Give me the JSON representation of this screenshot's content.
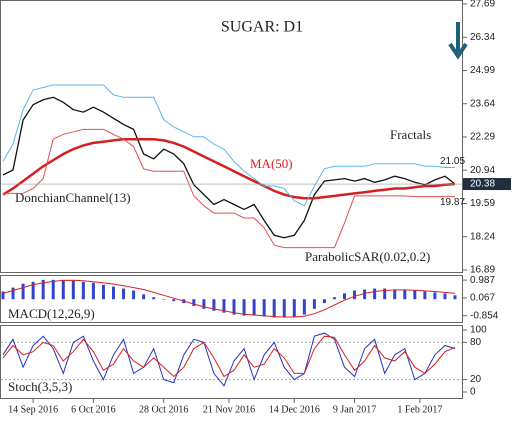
{
  "chart_data": [
    {
      "type": "line",
      "title": "SUGAR: D1",
      "annotations": [
        "Fractals",
        "MA(50)",
        "DonchianChannel(13)",
        "ParabolicSAR(0.02,0.2)"
      ],
      "xlim": [
        0,
        45
      ],
      "xticks": [
        {
          "value": 3,
          "label": "14 Sep 2016"
        },
        {
          "value": 9,
          "label": "6 Oct 2016"
        },
        {
          "value": 16,
          "label": "28 Oct 2016"
        },
        {
          "value": 22.5,
          "label": "21 Nov 2016"
        },
        {
          "value": 29,
          "label": "14 Dec 2016"
        },
        {
          "value": 35,
          "label": "9 Jan 2017"
        },
        {
          "value": 41.5,
          "label": "1 Feb 2017"
        }
      ],
      "ylim": [
        16.89,
        27.69
      ],
      "yticks": [
        16.89,
        18.24,
        19.59,
        20.94,
        22.29,
        23.64,
        24.99,
        26.34,
        27.69
      ],
      "last_price": 20.38,
      "channel_labels": [
        21.05,
        19.87
      ],
      "series": [
        {
          "color": "#111111",
          "values": [
            20.75,
            20.95,
            22.98,
            23.6,
            23.8,
            23.9,
            23.7,
            23.4,
            23.3,
            23.5,
            23.3,
            23.05,
            22.8,
            22.6,
            21.6,
            21.4,
            21.8,
            21.6,
            21.2,
            20.35,
            19.95,
            19.55,
            19.75,
            19.55,
            19.35,
            19.55,
            18.9,
            18.3,
            18.2,
            18.3,
            18.9,
            19.95,
            20.5,
            20.55,
            20.6,
            20.5,
            20.6,
            20.45,
            20.55,
            20.7,
            20.6,
            20.45,
            20.35,
            20.55,
            20.7,
            20.38
          ]
        },
        {
          "color": "#d42020",
          "values": [
            19.95,
            20.2,
            20.5,
            20.8,
            21.1,
            21.35,
            21.6,
            21.8,
            21.95,
            22.05,
            22.1,
            22.15,
            22.2,
            22.2,
            22.2,
            22.2,
            22.15,
            22.05,
            21.9,
            21.7,
            21.5,
            21.3,
            21.1,
            20.9,
            20.7,
            20.5,
            20.3,
            20.1,
            19.95,
            19.85,
            19.8,
            19.8,
            19.85,
            19.9,
            19.95,
            20.0,
            20.05,
            20.1,
            20.15,
            20.2,
            20.2,
            20.25,
            20.3,
            20.3,
            20.35,
            20.38
          ]
        },
        {
          "color": "#5bb8e6",
          "values": [
            21.3,
            22.0,
            23.4,
            24.2,
            24.3,
            24.4,
            24.4,
            24.4,
            24.4,
            24.4,
            24.4,
            24.0,
            23.9,
            23.9,
            23.9,
            23.9,
            23.0,
            22.7,
            22.5,
            22.3,
            22.3,
            22.0,
            21.8,
            21.3,
            20.9,
            20.6,
            20.3,
            20.3,
            20.2,
            19.7,
            19.5,
            20.3,
            21.0,
            21.1,
            21.1,
            21.1,
            21.1,
            21.2,
            21.2,
            21.2,
            21.2,
            21.2,
            21.1,
            21.1,
            21.05,
            21.05
          ]
        },
        {
          "color": "#e05050",
          "values": [
            20.0,
            20.0,
            20.0,
            20.2,
            20.6,
            22.2,
            22.4,
            22.5,
            22.6,
            22.6,
            22.6,
            22.4,
            22.2,
            21.9,
            21.0,
            20.9,
            20.9,
            20.9,
            20.9,
            19.9,
            19.5,
            19.2,
            19.2,
            19.2,
            19.0,
            19.0,
            18.6,
            17.9,
            17.8,
            17.8,
            17.8,
            17.8,
            17.8,
            17.8,
            18.8,
            19.9,
            19.9,
            19.9,
            19.9,
            19.9,
            19.9,
            19.87,
            19.87,
            19.87,
            19.87,
            19.87
          ]
        }
      ]
    },
    {
      "type": "bar",
      "annotations": [
        "MACD(12,26,9)"
      ],
      "xlim": [
        0,
        45
      ],
      "ylim": [
        -1.18,
        1.2
      ],
      "yticks": [
        -0.854,
        0.067,
        0.987
      ],
      "color": "#3344cc",
      "values": [
        0.4,
        0.6,
        0.8,
        0.9,
        1.0,
        1.0,
        1.0,
        0.95,
        0.9,
        0.85,
        0.75,
        0.65,
        0.55,
        0.45,
        0.25,
        0.1,
        0,
        -0.1,
        -0.2,
        -0.35,
        -0.5,
        -0.6,
        -0.7,
        -0.8,
        -0.85,
        -0.85,
        -0.9,
        -0.95,
        -0.95,
        -0.9,
        -0.8,
        -0.5,
        -0.2,
        0.1,
        0.3,
        0.45,
        0.5,
        0.55,
        0.55,
        0.5,
        0.5,
        0.45,
        0.4,
        0.35,
        0.3,
        0.2
      ],
      "series": [
        {
          "color": "#d42020",
          "values": [
            0.3,
            0.45,
            0.6,
            0.75,
            0.85,
            0.92,
            0.97,
            0.98,
            0.95,
            0.9,
            0.85,
            0.78,
            0.7,
            0.6,
            0.5,
            0.35,
            0.2,
            0.05,
            -0.1,
            -0.25,
            -0.4,
            -0.5,
            -0.6,
            -0.7,
            -0.78,
            -0.82,
            -0.86,
            -0.9,
            -0.92,
            -0.92,
            -0.88,
            -0.75,
            -0.55,
            -0.3,
            -0.05,
            0.15,
            0.3,
            0.4,
            0.45,
            0.48,
            0.48,
            0.46,
            0.43,
            0.4,
            0.35,
            0.3
          ]
        }
      ]
    },
    {
      "type": "line",
      "annotations": [
        "Stoch(3,5,3)"
      ],
      "xlim": [
        0,
        45
      ],
      "ylim": [
        0,
        100
      ],
      "yticks": [
        0,
        20,
        80,
        100
      ],
      "series": [
        {
          "color": "#2233bb",
          "values": [
            60,
            85,
            40,
            75,
            90,
            70,
            30,
            80,
            90,
            50,
            20,
            60,
            85,
            30,
            40,
            70,
            20,
            15,
            60,
            85,
            80,
            30,
            10,
            50,
            70,
            20,
            60,
            80,
            40,
            20,
            30,
            90,
            95,
            85,
            40,
            25,
            70,
            85,
            30,
            60,
            70,
            20,
            30,
            60,
            75,
            70
          ]
        },
        {
          "color": "#d42020",
          "values": [
            55,
            75,
            60,
            65,
            80,
            75,
            50,
            65,
            85,
            65,
            35,
            45,
            70,
            50,
            40,
            55,
            40,
            25,
            40,
            70,
            80,
            55,
            25,
            35,
            60,
            40,
            45,
            70,
            55,
            30,
            30,
            70,
            90,
            88,
            60,
            35,
            50,
            75,
            55,
            50,
            65,
            40,
            30,
            45,
            65,
            72
          ]
        }
      ]
    }
  ]
}
